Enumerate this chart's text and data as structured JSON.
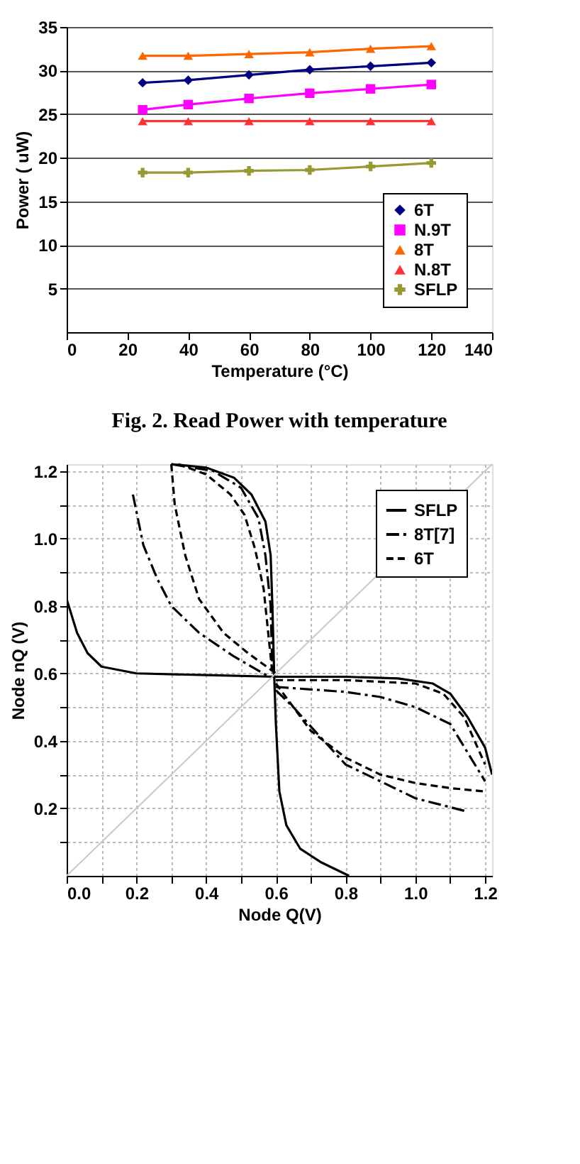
{
  "chart_data": [
    {
      "type": "line",
      "xlabel": "Temperature (°C)",
      "ylabel": "Power ( uW)",
      "xlim": [
        0,
        140
      ],
      "xticks": [
        0,
        20,
        40,
        60,
        80,
        100,
        120,
        140
      ],
      "ylim": [
        0,
        35
      ],
      "yticks": [
        5,
        10,
        15,
        20,
        25,
        30,
        35
      ],
      "grid": "y",
      "legend": "bottom right",
      "annotations": [
        "Fig. 2. Read Power with  temperature"
      ],
      "x": [
        25,
        40,
        60,
        80,
        100,
        120
      ],
      "series": [
        {
          "name": "6T",
          "color": "#000080",
          "marker": "diamond",
          "values": [
            28.6,
            28.9,
            29.5,
            30.1,
            30.5,
            30.9
          ]
        },
        {
          "name": "N.9T",
          "color": "#ff00ff",
          "marker": "square",
          "values": [
            25.5,
            26.1,
            26.8,
            27.4,
            27.9,
            28.4
          ]
        },
        {
          "name": "8T",
          "color": "#ff6600",
          "marker": "triangle",
          "values": [
            31.7,
            31.7,
            31.9,
            32.1,
            32.5,
            32.8
          ]
        },
        {
          "name": "N.8T",
          "color": "#ff3333",
          "marker": "triangle",
          "values": [
            24.2,
            24.2,
            24.2,
            24.2,
            24.2,
            24.2
          ]
        },
        {
          "name": "SFLP",
          "color": "#999933",
          "marker": "cross",
          "values": [
            18.3,
            18.3,
            18.5,
            18.6,
            19.0,
            19.4
          ]
        }
      ]
    },
    {
      "type": "line",
      "xlabel": "Node Q(V)",
      "ylabel": "Node nQ (V)",
      "xlim": [
        0,
        1.22
      ],
      "ylim": [
        0,
        1.22
      ],
      "grid": true,
      "legend": "top right",
      "xticks": [
        {
          "value": 0,
          "label": "0.0"
        },
        {
          "value": 0.1,
          "label": null
        },
        0.2,
        {
          "value": 0.3,
          "label": null
        },
        0.4,
        {
          "value": 0.5,
          "label": null
        },
        0.6,
        {
          "value": 0.7,
          "label": null
        },
        0.8,
        {
          "value": 0.9,
          "label": null
        },
        {
          "value": 1.0,
          "label": "1.0"
        },
        {
          "value": 1.1,
          "label": null
        },
        1.2
      ],
      "yticks": [
        {
          "value": 0.1,
          "label": null
        },
        0.2,
        {
          "value": 0.3,
          "label": null
        },
        0.4,
        {
          "value": 0.5,
          "label": null
        },
        0.6,
        {
          "value": 0.7,
          "label": null
        },
        0.8,
        {
          "value": 0.9,
          "label": null
        },
        {
          "value": 1.0,
          "label": "1.0"
        },
        {
          "value": 1.1,
          "label": null
        },
        1.2
      ],
      "series": [
        {
          "name": "SFLP",
          "color": "#000000",
          "line_style": "solid",
          "x": [
            0,
            0.03,
            0.06,
            0.1,
            0.2,
            0.4,
            0.6,
            0.8,
            0.95,
            1.05,
            1.1,
            1.15,
            1.2,
            1.22
          ],
          "values": [
            0.82,
            0.72,
            0.66,
            0.62,
            0.6,
            0.595,
            0.59,
            0.59,
            0.585,
            0.57,
            0.54,
            0.47,
            0.38,
            0.3
          ]
        },
        {
          "name": "8T[7]",
          "color": "#000000",
          "line_style": "dashdot",
          "x": [
            0.19,
            0.22,
            0.26,
            0.3,
            0.38,
            0.48,
            0.58
          ],
          "values": [
            1.13,
            0.98,
            0.88,
            0.8,
            0.72,
            0.65,
            0.59
          ]
        },
        {
          "name": "6T",
          "color": "#000000",
          "line_style": "dashed",
          "x": [
            0.3,
            0.31,
            0.34,
            0.38,
            0.45,
            0.52,
            0.6
          ],
          "values": [
            1.22,
            1.1,
            0.95,
            0.82,
            0.72,
            0.66,
            0.6
          ]
        },
        {
          "color": "#000000",
          "line_style": "solid",
          "x": [
            0.3,
            0.4,
            0.48,
            0.53,
            0.57,
            0.585,
            0.59,
            0.595,
            0.6,
            0.61,
            0.63,
            0.67,
            0.73,
            0.81
          ],
          "values": [
            1.22,
            1.21,
            1.18,
            1.13,
            1.05,
            0.95,
            0.8,
            0.6,
            0.45,
            0.25,
            0.15,
            0.08,
            0.04,
            0.0
          ]
        },
        {
          "color": "#000000",
          "line_style": "dashdot",
          "x": [
            0.6,
            0.65,
            0.72,
            0.8,
            0.9,
            1.0,
            1.15
          ],
          "values": [
            0.55,
            0.5,
            0.42,
            0.33,
            0.28,
            0.23,
            0.19
          ]
        },
        {
          "color": "#000000",
          "line_style": "dashdot",
          "x": [
            0.3,
            0.42,
            0.5,
            0.55,
            0.57,
            0.585,
            0.59
          ],
          "values": [
            1.22,
            1.2,
            1.15,
            1.06,
            0.95,
            0.8,
            0.6
          ]
        },
        {
          "color": "#000000",
          "line_style": "dashdot",
          "x": [
            0.6,
            0.8,
            0.9,
            1.0,
            1.1,
            1.2
          ],
          "values": [
            0.56,
            0.545,
            0.53,
            0.5,
            0.45,
            0.28
          ]
        },
        {
          "color": "#000000",
          "line_style": "dashed",
          "x": [
            0.6,
            0.65,
            0.7,
            0.8,
            0.9,
            1.0,
            1.1,
            1.2
          ],
          "values": [
            0.57,
            0.5,
            0.43,
            0.35,
            0.3,
            0.275,
            0.26,
            0.25
          ]
        },
        {
          "color": "#000000",
          "line_style": "dashed",
          "x": [
            0.32,
            0.4,
            0.47,
            0.51,
            0.54,
            0.565,
            0.58,
            0.59
          ],
          "values": [
            1.22,
            1.19,
            1.13,
            1.07,
            0.97,
            0.85,
            0.7,
            0.6
          ]
        },
        {
          "color": "#000000",
          "line_style": "dashed",
          "x": [
            0.6,
            0.8,
            1.0,
            1.08,
            1.14,
            1.2
          ],
          "values": [
            0.58,
            0.58,
            0.57,
            0.54,
            0.47,
            0.33
          ]
        },
        {
          "color": "#c8c8c8",
          "line_style": "solid",
          "x": [
            0,
            1.22
          ],
          "values": [
            0,
            1.22
          ]
        }
      ]
    }
  ]
}
